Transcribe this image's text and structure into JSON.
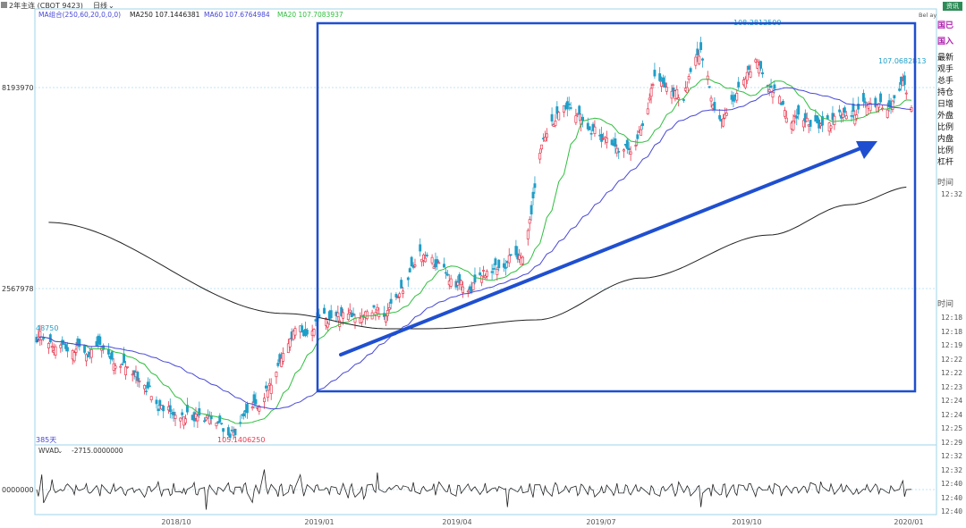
{
  "header": {
    "title": "2年主连 (CBOT 9423)",
    "period": "日线",
    "ma_group": "MA组合(250,60,20,0,0,0)",
    "ma250": "MA250 107.1446381",
    "ma60": "MA60 107.6764984",
    "ma20": "MA20 107.7083937",
    "right_tag": "Bel ay"
  },
  "price_panel": {
    "y_labels": [
      "8193970",
      "2567978"
    ],
    "left_marker": "48750",
    "bottom_left": "385天",
    "high_label": "108.2812500",
    "right_label": "107.0682813",
    "low_label": "105.1406250"
  },
  "volume_panel": {
    "label": "WVAD",
    "value": "-2715.0000000",
    "y_label": "0000000"
  },
  "x_axis": [
    "2018/10",
    "2019/01",
    "2019/04",
    "2019/07",
    "2019/10",
    "2020/01"
  ],
  "side_panel": {
    "top_badge": "资讯",
    "red1": "国已",
    "red2": "国入",
    "labels": [
      "最新",
      "观手",
      "总手",
      "持仓",
      "日增",
      "外盘",
      "比例",
      "内盘",
      "比例",
      "杠杆"
    ],
    "time_header1": "时间",
    "time_header2": "时间",
    "times1": [
      "12:32"
    ],
    "times2": [
      "12:18",
      "12:18",
      "12:19",
      "12:22",
      "12:22",
      "12:23",
      "12:24",
      "12:24",
      "12:25",
      "12:29",
      "12:32",
      "12:32",
      "12:40",
      "12:40",
      "12:40"
    ]
  },
  "colors": {
    "up": "#e8384f",
    "down": "#1e9ec8",
    "ma20": "#2fbf3f",
    "ma60": "#4848d8",
    "ma250": "#222222",
    "annotation": "#1f4fd0",
    "grid": "#bfe6f5"
  },
  "chart_data": {
    "type": "candlestick",
    "title": "2年主连 (CBOT 9423)",
    "x_ticks": [
      "2018/10",
      "2019/01",
      "2019/04",
      "2019/07",
      "2019/10",
      "2020/01"
    ],
    "ylim": [
      105.0,
      108.4
    ],
    "annotations": {
      "high": 108.28125,
      "low": 105.140625,
      "last_marked": 107.0682813
    },
    "anchors": [
      [
        "2018-08-15",
        105.92
      ],
      [
        "2018-09-05",
        105.8
      ],
      [
        "2018-09-20",
        105.85
      ],
      [
        "2018-10-10",
        105.58
      ],
      [
        "2018-10-25",
        105.35
      ],
      [
        "2018-11-15",
        105.28
      ],
      [
        "2018-12-03",
        105.14
      ],
      [
        "2018-12-20",
        105.4
      ],
      [
        "2019-01-07",
        105.78
      ],
      [
        "2019-01-10",
        105.9
      ],
      [
        "2019-01-20",
        106.02
      ],
      [
        "2019-02-10",
        106.06
      ],
      [
        "2019-03-10",
        106.15
      ],
      [
        "2019-03-25",
        106.55
      ],
      [
        "2019-04-20",
        106.3
      ],
      [
        "2019-05-25",
        106.6
      ],
      [
        "2019-06-05",
        107.5
      ],
      [
        "2019-06-20",
        107.75
      ],
      [
        "2019-07-10",
        107.5
      ],
      [
        "2019-07-28",
        107.4
      ],
      [
        "2019-08-10",
        107.95
      ],
      [
        "2019-08-25",
        107.8
      ],
      [
        "2019-09-05",
        108.2
      ],
      [
        "2019-09-15",
        107.6
      ],
      [
        "2019-10-08",
        108.1
      ],
      [
        "2019-10-25",
        107.7
      ],
      [
        "2019-11-15",
        107.58
      ],
      [
        "2019-12-10",
        107.75
      ],
      [
        "2019-12-25",
        107.7
      ],
      [
        "2020-01-02",
        107.9
      ],
      [
        "2020-01-05",
        107.78
      ]
    ],
    "ma250_anchors": [
      [
        "2018-08-20",
        106.82
      ],
      [
        "2019-01-05",
        106.1
      ],
      [
        "2019-03-05",
        105.98
      ],
      [
        "2019-04-01",
        105.98
      ],
      [
        "2019-06-01",
        106.05
      ],
      [
        "2019-08-01",
        106.38
      ],
      [
        "2019-10-15",
        106.72
      ],
      [
        "2019-12-01",
        106.96
      ],
      [
        "2020-01-05",
        107.1
      ]
    ],
    "ma250_value": 107.1446381,
    "ma60_value": 107.6764984,
    "ma20_value": 107.7083937
  }
}
